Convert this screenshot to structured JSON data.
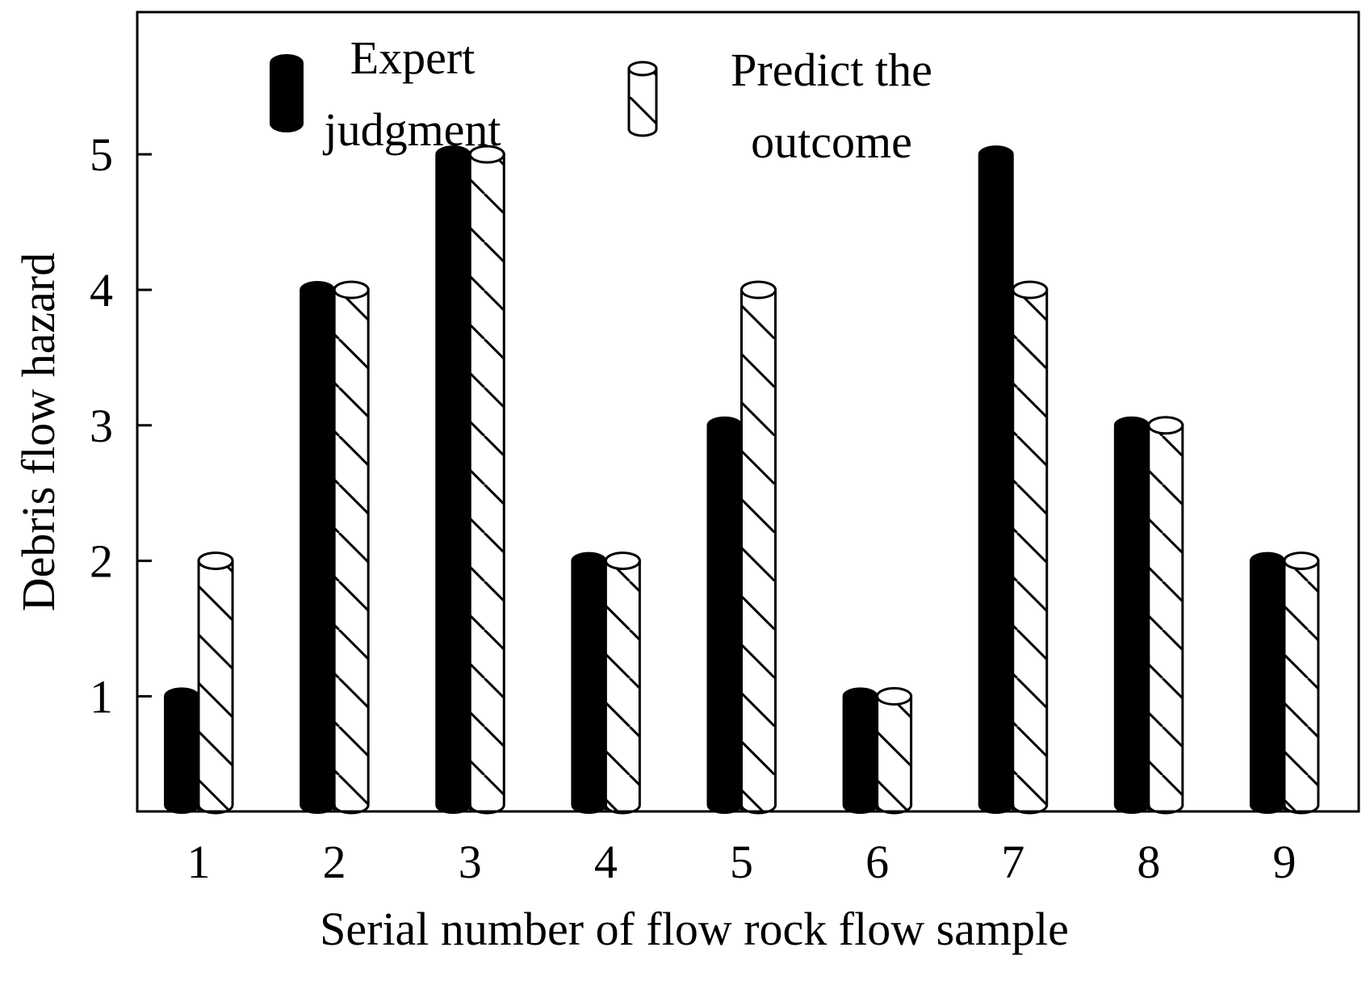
{
  "chart_data": {
    "type": "bar",
    "style": "3d-cylinder",
    "categories": [
      "1",
      "2",
      "3",
      "4",
      "5",
      "6",
      "7",
      "8",
      "9"
    ],
    "series": [
      {
        "name": "Expert judgment",
        "values": [
          1,
          4,
          5,
          2,
          3,
          1,
          5,
          3,
          2
        ],
        "fill": "solid-black"
      },
      {
        "name": "Predict the outcome",
        "values": [
          2,
          4,
          5,
          2,
          4,
          1,
          4,
          3,
          2
        ],
        "fill": "diagonal-hatch"
      }
    ],
    "title": "",
    "xlabel": "Serial number of flow rock flow sample",
    "ylabel": "Debris flow hazard",
    "ylim": [
      0.15,
      6.05
    ],
    "yticks": [
      1,
      2,
      3,
      4,
      5
    ],
    "grid": false,
    "legend_placement": "top-center",
    "legend": {
      "expert_lines": [
        "Expert",
        "judgment"
      ],
      "predict_lines": [
        "Predict the",
        "outcome"
      ]
    },
    "colors": {
      "expert": "#000000",
      "predict": "#ffffff",
      "stroke": "#000000"
    }
  }
}
